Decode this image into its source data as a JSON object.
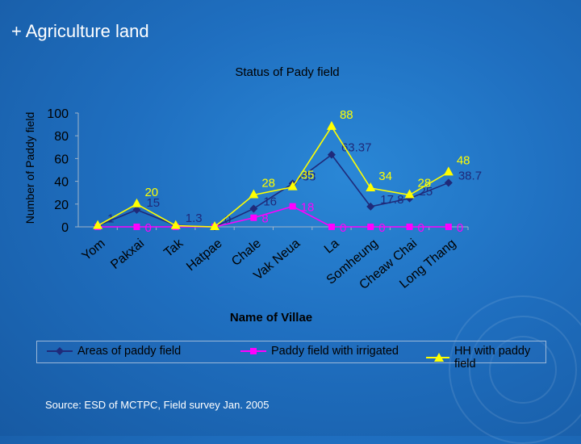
{
  "heading": "+ Agriculture land",
  "source": "Source: ESD of MCTPC, Field survey Jan. 2005",
  "colors": {
    "areas": "#1f2a7a",
    "irrigated": "#ff00ff",
    "households": "#ffff00",
    "text": "#000000"
  },
  "chart_data": {
    "type": "line",
    "title": "Status of Pady field",
    "xlabel": "Name of Villae",
    "ylabel": "Number of Paddy field",
    "ylim": [
      0,
      100
    ],
    "yticks": [
      0,
      20,
      40,
      60,
      80,
      100
    ],
    "grid": false,
    "legend_position": "bottom",
    "categories": [
      "Yom",
      "Pakxai",
      "Tak",
      "Hatpae",
      "Chale",
      "Vak Neua",
      "La",
      "Somheung",
      "Cheaw Chai",
      "Long Thang"
    ],
    "series": [
      {
        "name": "Areas of paddy field",
        "marker": "diamond",
        "values": [
          1,
          15,
          1.3,
          0,
          16,
          38,
          63.37,
          17.8,
          25,
          38.7
        ],
        "labels": [
          "1",
          "15",
          "1.3",
          "0",
          "16",
          "38",
          "63.37",
          "17.8",
          "25",
          "38.7"
        ]
      },
      {
        "name": "Paddy field with irrigated",
        "marker": "square",
        "values": [
          0,
          0,
          0,
          0,
          8,
          18,
          0,
          0,
          0,
          0
        ],
        "labels": [
          "",
          "0",
          "",
          "",
          "8",
          "18",
          "0",
          "0",
          "0",
          "0"
        ]
      },
      {
        "name": "HH with paddy field",
        "marker": "triangle",
        "values": [
          1,
          20,
          1,
          0,
          28,
          35,
          88,
          34,
          28,
          48
        ],
        "labels": [
          "",
          "20",
          "",
          "",
          "28",
          "35",
          "88",
          "34",
          "28",
          "48"
        ]
      }
    ]
  }
}
